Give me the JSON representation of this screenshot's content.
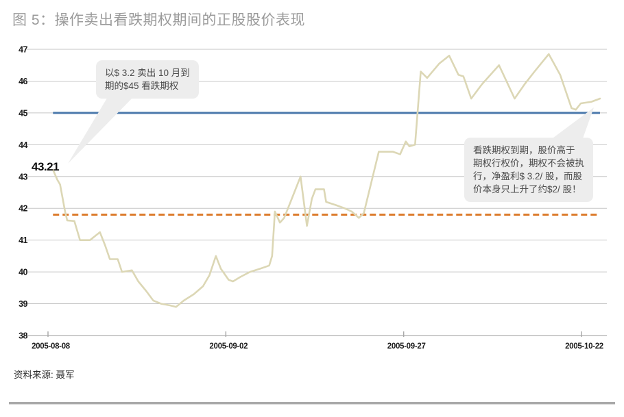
{
  "header": {
    "title": "图 5：操作卖出看跌期权期间的正股股价表现"
  },
  "footer": {
    "source_label": "资料来源: 聂军"
  },
  "callouts": {
    "sell_put": {
      "text": "以$ 3.2 卖出 10 月到\n期的$45 看跌期权"
    },
    "expiry": {
      "text": "看跌期权到期，股价高于\n期权行权价，期权不会被执\n行，净盈利$ 3.2/ 股，而股\n价本身只上升了约$2/ 股！"
    }
  },
  "chart_data": {
    "type": "line",
    "title": "操作卖出看跌期权期间的正股股价表现",
    "xlabel": "",
    "ylabel": "",
    "ylim": [
      38,
      47
    ],
    "grid": true,
    "legend": "none",
    "y_ticks": [
      38,
      39,
      40,
      41,
      42,
      43,
      44,
      45,
      46,
      47
    ],
    "x_ticks": [
      {
        "label": "2005-08-08",
        "t": 0
      },
      {
        "label": "2005-09-02",
        "t": 25
      },
      {
        "label": "2005-09-27",
        "t": 50
      },
      {
        "label": "2005-10-22",
        "t": 75
      }
    ],
    "start_label": {
      "text": "43.21",
      "t": 0.7,
      "y": 43.21
    },
    "reference_lines": [
      {
        "id": "strike",
        "value": 45.0,
        "color": "#4b79ab",
        "style": "solid",
        "t_start": 0.7,
        "t_end": 77.6
      },
      {
        "id": "breakeven",
        "value": 41.8,
        "color": "#dc7b2c",
        "style": "dashed",
        "t_start": 0.7,
        "t_end": 77.6
      }
    ],
    "series": [
      {
        "id": "stock-price",
        "color": "#dcd7b5",
        "points": [
          [
            0.7,
            43.21
          ],
          [
            1.3,
            42.9
          ],
          [
            1.7,
            42.75
          ],
          [
            2.4,
            41.9
          ],
          [
            2.7,
            41.62
          ],
          [
            3.7,
            41.6
          ],
          [
            4.5,
            41.0
          ],
          [
            5.9,
            41.0
          ],
          [
            7.3,
            41.25
          ],
          [
            8.0,
            40.85
          ],
          [
            8.7,
            40.4
          ],
          [
            9.8,
            40.4
          ],
          [
            10.4,
            40.0
          ],
          [
            11.8,
            40.05
          ],
          [
            12.7,
            39.7
          ],
          [
            13.8,
            39.4
          ],
          [
            14.8,
            39.1
          ],
          [
            15.9,
            39.0
          ],
          [
            17.1,
            38.95
          ],
          [
            18.0,
            38.9
          ],
          [
            19.1,
            39.1
          ],
          [
            20.5,
            39.3
          ],
          [
            21.8,
            39.55
          ],
          [
            22.7,
            39.9
          ],
          [
            23.6,
            40.5
          ],
          [
            24.3,
            40.1
          ],
          [
            25.4,
            39.75
          ],
          [
            26.0,
            39.7
          ],
          [
            27.1,
            39.85
          ],
          [
            28.4,
            40.0
          ],
          [
            29.8,
            40.1
          ],
          [
            31.1,
            40.2
          ],
          [
            31.5,
            40.5
          ],
          [
            31.9,
            41.9
          ],
          [
            32.6,
            41.55
          ],
          [
            33.2,
            41.7
          ],
          [
            34.1,
            42.2
          ],
          [
            34.8,
            42.6
          ],
          [
            35.5,
            43.0
          ],
          [
            36.4,
            41.45
          ],
          [
            37.1,
            42.3
          ],
          [
            37.6,
            42.6
          ],
          [
            38.8,
            42.6
          ],
          [
            39.1,
            42.2
          ],
          [
            40.5,
            42.1
          ],
          [
            41.7,
            42.0
          ],
          [
            42.7,
            41.9
          ],
          [
            43.7,
            41.7
          ],
          [
            44.4,
            41.85
          ],
          [
            46.5,
            43.78
          ],
          [
            48.5,
            43.78
          ],
          [
            49.5,
            43.7
          ],
          [
            50.3,
            44.1
          ],
          [
            50.8,
            43.95
          ],
          [
            51.6,
            44.0
          ],
          [
            52.4,
            46.3
          ],
          [
            53.3,
            46.1
          ],
          [
            55.0,
            46.55
          ],
          [
            56.4,
            46.8
          ],
          [
            57.7,
            46.2
          ],
          [
            58.4,
            46.15
          ],
          [
            59.5,
            45.45
          ],
          [
            61.0,
            45.9
          ],
          [
            62.2,
            46.2
          ],
          [
            63.4,
            46.5
          ],
          [
            65.6,
            45.45
          ],
          [
            67.0,
            45.9
          ],
          [
            68.4,
            46.3
          ],
          [
            70.4,
            46.85
          ],
          [
            72.0,
            46.2
          ],
          [
            73.6,
            45.15
          ],
          [
            74.2,
            45.1
          ],
          [
            74.9,
            45.3
          ],
          [
            76.4,
            45.35
          ],
          [
            77.6,
            45.45
          ]
        ]
      }
    ]
  }
}
